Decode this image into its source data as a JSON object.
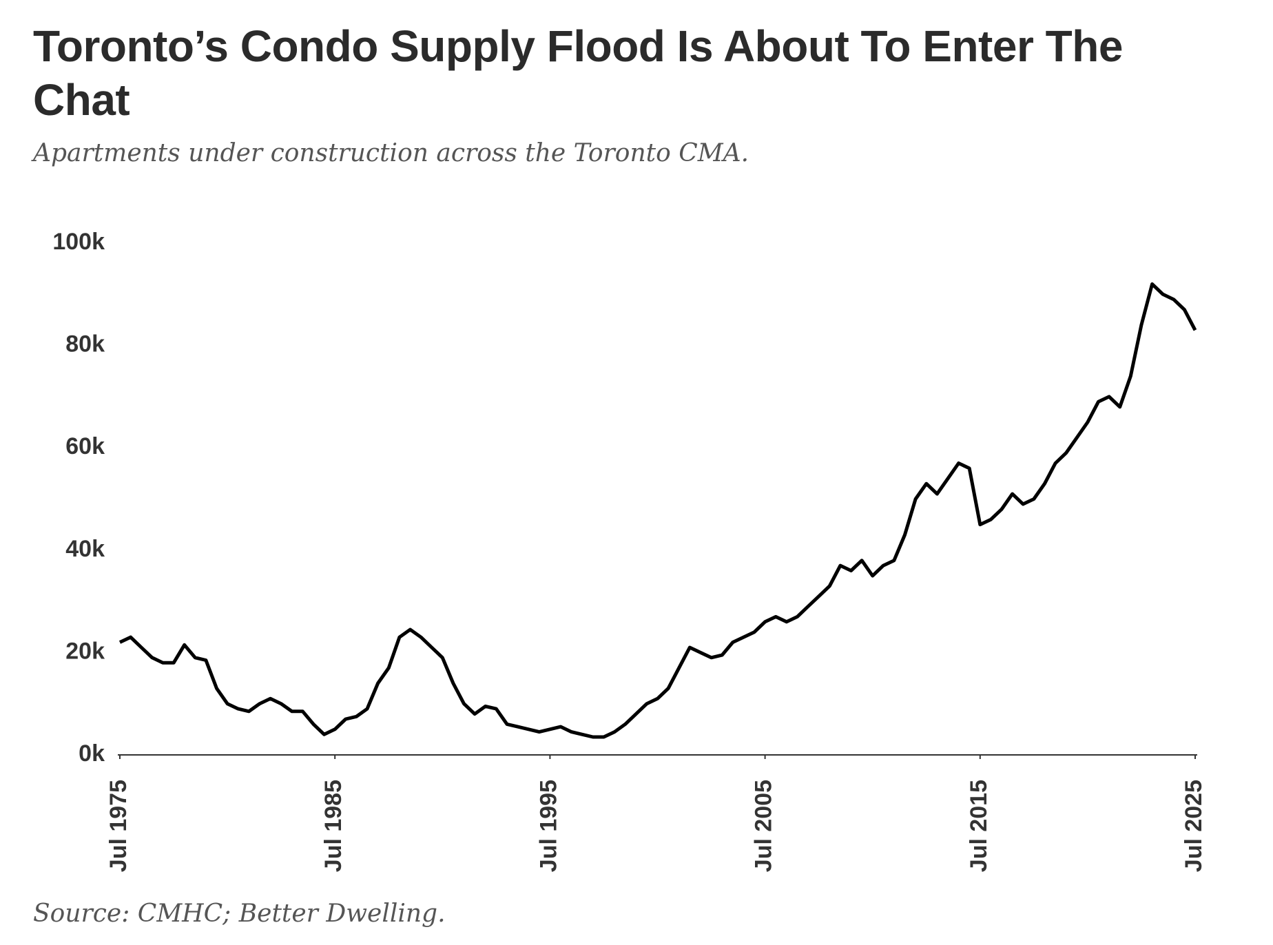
{
  "chart_data": {
    "type": "line",
    "title": "Toronto’s Condo Supply Flood Is About To Enter The Chat",
    "subtitle": "Apartments under construction across the Toronto CMA.",
    "source": "Source: CMHC; Better Dwelling.",
    "x": [
      "1975-07",
      "1976-01",
      "1976-07",
      "1977-01",
      "1977-07",
      "1978-01",
      "1978-07",
      "1979-01",
      "1979-07",
      "1980-01",
      "1980-07",
      "1981-01",
      "1981-07",
      "1982-01",
      "1982-07",
      "1983-01",
      "1983-07",
      "1984-01",
      "1984-07",
      "1985-01",
      "1985-07",
      "1986-01",
      "1986-07",
      "1987-01",
      "1987-07",
      "1988-01",
      "1988-07",
      "1989-01",
      "1989-07",
      "1990-01",
      "1990-07",
      "1991-01",
      "1991-07",
      "1992-01",
      "1992-07",
      "1993-01",
      "1993-07",
      "1994-01",
      "1994-07",
      "1995-01",
      "1995-07",
      "1996-01",
      "1996-07",
      "1997-01",
      "1997-07",
      "1998-01",
      "1998-07",
      "1999-01",
      "1999-07",
      "2000-01",
      "2000-07",
      "2001-01",
      "2001-07",
      "2002-01",
      "2002-07",
      "2003-01",
      "2003-07",
      "2004-01",
      "2004-07",
      "2005-01",
      "2005-07",
      "2006-01",
      "2006-07",
      "2007-01",
      "2007-07",
      "2008-01",
      "2008-07",
      "2009-01",
      "2009-07",
      "2010-01",
      "2010-07",
      "2011-01",
      "2011-07",
      "2012-01",
      "2012-07",
      "2013-01",
      "2013-07",
      "2014-01",
      "2014-07",
      "2015-01",
      "2015-07",
      "2016-01",
      "2016-07",
      "2017-01",
      "2017-07",
      "2018-01",
      "2018-07",
      "2019-01",
      "2019-07",
      "2020-01",
      "2020-07",
      "2021-01",
      "2021-07",
      "2022-01",
      "2022-07",
      "2023-01",
      "2023-07",
      "2024-01",
      "2024-07",
      "2025-01",
      "2025-07"
    ],
    "series": [
      {
        "name": "Apartments under construction",
        "color": "#000000",
        "values": [
          22000,
          23000,
          21000,
          19000,
          18000,
          18000,
          21500,
          19000,
          18500,
          13000,
          10000,
          9000,
          8500,
          10000,
          11000,
          10000,
          8500,
          8500,
          6000,
          4000,
          5000,
          7000,
          7500,
          9000,
          14000,
          17000,
          23000,
          24500,
          23000,
          21000,
          19000,
          14000,
          10000,
          8000,
          9500,
          9000,
          6000,
          5500,
          5000,
          4500,
          5000,
          5500,
          4500,
          4000,
          3500,
          3500,
          4500,
          6000,
          8000,
          10000,
          11000,
          13000,
          17000,
          21000,
          20000,
          19000,
          19500,
          22000,
          23000,
          24000,
          26000,
          27000,
          26000,
          27000,
          29000,
          31000,
          33000,
          37000,
          36000,
          38000,
          35000,
          37000,
          38000,
          43000,
          50000,
          53000,
          51000,
          54000,
          57000,
          56000,
          45000,
          46000,
          48000,
          51000,
          49000,
          50000,
          53000,
          57000,
          59000,
          62000,
          65000,
          69000,
          70000,
          68000,
          74000,
          84000,
          92000,
          90000,
          89000,
          87000,
          83000
        ]
      }
    ],
    "xticks": [
      {
        "value": "1975-07",
        "label": "Jul 1975"
      },
      {
        "value": "1985-07",
        "label": "Jul 1985"
      },
      {
        "value": "1995-07",
        "label": "Jul 1995"
      },
      {
        "value": "2005-07",
        "label": "Jul 2005"
      },
      {
        "value": "2015-07",
        "label": "Jul 2015"
      },
      {
        "value": "2025-07",
        "label": "Jul 2025"
      }
    ],
    "xlim": [
      "1975-07",
      "2025-07"
    ],
    "ylim": [
      0,
      100000
    ],
    "yticks": [
      {
        "value": 0,
        "label": "0k"
      },
      {
        "value": 20000,
        "label": "20k"
      },
      {
        "value": 40000,
        "label": "40k"
      },
      {
        "value": 60000,
        "label": "60k"
      },
      {
        "value": 80000,
        "label": "80k"
      },
      {
        "value": 100000,
        "label": "100k"
      }
    ],
    "grid": false
  }
}
